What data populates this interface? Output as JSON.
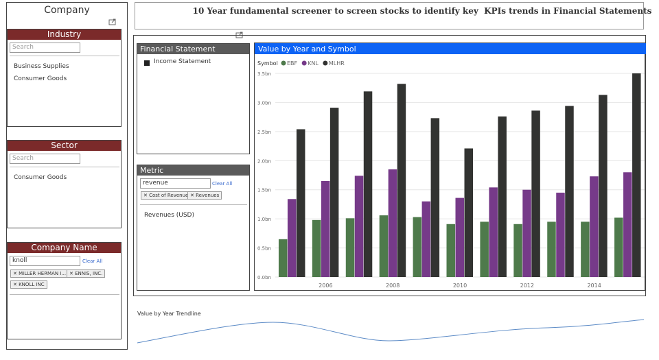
{
  "page_title": "10 Year fundamental screener to screen stocks to identify key  KPIs trends in Financial Statements",
  "company_header": "Company",
  "industry": {
    "title": "Industry",
    "search_placeholder": "Search",
    "items": [
      "Business Supplies",
      "Consumer Goods"
    ]
  },
  "sector": {
    "title": "Sector",
    "search_placeholder": "Search",
    "items": [
      "Consumer Goods"
    ]
  },
  "company_name": {
    "title": "Company Name",
    "search_value": "knoll",
    "clear": "Clear All",
    "chips": [
      "MILLER HERMAN I...",
      "ENNIS, INC.",
      "KNOLL INC"
    ]
  },
  "financial_statement": {
    "title": "Financial Statement",
    "items": [
      "Income Statement"
    ]
  },
  "metric": {
    "title": "Metric",
    "search_value": "revenue",
    "clear": "Clear All",
    "chips": [
      "Cost of Revenue",
      "Revenues"
    ],
    "items": [
      "Revenues (USD)"
    ]
  },
  "chart_data": {
    "type": "bar",
    "title": "Value by Year and Symbol",
    "legend_title": "Symbol",
    "categories": [
      null,
      "2006",
      null,
      "2008",
      null,
      "2010",
      null,
      "2012",
      null,
      "2014",
      null
    ],
    "series": [
      {
        "name": "EBF",
        "color": "#4e7a4b",
        "values": [
          0.65,
          0.98,
          1.01,
          1.06,
          1.03,
          0.91,
          0.95,
          0.91,
          0.95,
          0.95,
          1.02
        ]
      },
      {
        "name": "KNL",
        "color": "#763a89",
        "values": [
          1.34,
          1.65,
          1.74,
          1.85,
          1.3,
          1.36,
          1.54,
          1.5,
          1.45,
          1.73,
          1.8
        ]
      },
      {
        "name": "MLHR",
        "color": "#323331",
        "values": [
          2.54,
          2.91,
          3.19,
          3.32,
          2.73,
          2.21,
          2.76,
          2.86,
          2.94,
          3.13,
          3.5
        ]
      }
    ],
    "ylim": [
      0,
      3.5
    ],
    "yticks": [
      {
        "value": 0,
        "label": "0.0bn"
      },
      {
        "value": 0.5,
        "label": "0.5bn"
      },
      {
        "value": 1,
        "label": "1.0bn"
      },
      {
        "value": 1.5,
        "label": "1.5bn"
      },
      {
        "value": 2,
        "label": "2.0bn"
      },
      {
        "value": 2.5,
        "label": "2.5bn"
      },
      {
        "value": 3,
        "label": "3.0bn"
      },
      {
        "value": 3.5,
        "label": "3.5bn"
      }
    ],
    "grid": true
  },
  "trendline_title": "Value by Year Trendline"
}
